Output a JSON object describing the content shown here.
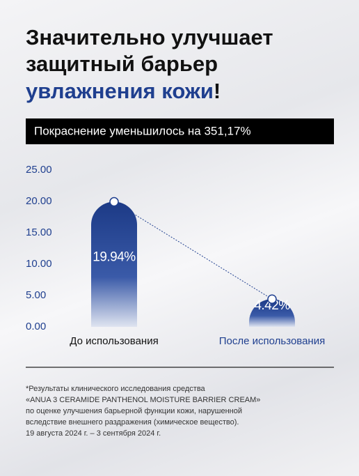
{
  "headline": {
    "lines": [
      "Значительно улучшает",
      "защитный барьер"
    ],
    "highlight": "увлажнения кожи",
    "end": "!"
  },
  "banner": "Покраснение уменьшилось на 351,17%",
  "chart_data": {
    "type": "bar",
    "categories": [
      "До использования",
      "После использования"
    ],
    "category_colors": [
      "#111111",
      "#1f3f8f"
    ],
    "values": [
      19.94,
      4.42
    ],
    "value_labels": [
      "19.94%",
      "4.42%"
    ],
    "color": "#1f3f8f",
    "ylim": [
      0,
      25
    ],
    "yticks": [
      {
        "value": 0,
        "label": "0.00"
      },
      {
        "value": 5,
        "label": "5.00"
      },
      {
        "value": 10,
        "label": "10.00"
      },
      {
        "value": 15,
        "label": "15.00"
      },
      {
        "value": 20,
        "label": "20.00"
      },
      {
        "value": 25,
        "label": "25.00"
      }
    ]
  },
  "footnote": [
    "*Результаты клинического исследования средства",
    "«ANUA 3 CERAMIDE PANTHENOL MOISTURE BARRIER CREAM»",
    "по оценке улучшения барьерной функции кожи, нарушенной",
    "вследствие внешнего раздражения (химическое вещество).",
    "19 августа 2024 г. – 3 сентября 2024 г."
  ]
}
